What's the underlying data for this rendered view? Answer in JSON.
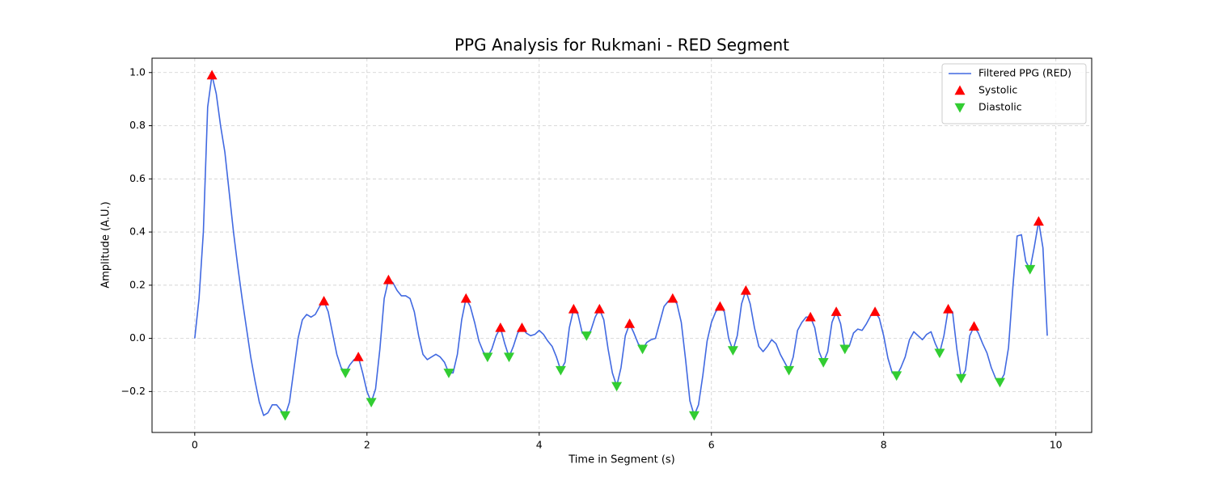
{
  "chart_data": {
    "type": "line",
    "title": "PPG Analysis for Rukmani - RED Segment",
    "xlabel": "Time in Segment (s)",
    "ylabel": "Amplitude (A.U.)",
    "xlim": [
      -0.496,
      10.416
    ],
    "ylim": [
      -0.354,
      1.054
    ],
    "xticks": [
      0,
      2,
      4,
      6,
      8,
      10
    ],
    "yticks": [
      {
        "value": -0.2,
        "label": "−0.2"
      },
      {
        "value": 0,
        "label": "0.0"
      },
      0.2,
      0.4,
      0.6,
      0.8,
      {
        "value": 1,
        "label": "1.0"
      }
    ],
    "grid": true,
    "legend": "upper right",
    "series": [
      {
        "name": "Filtered PPG (RED)",
        "color": "#4169e1",
        "marker": "line",
        "x": [
          0,
          0.05,
          0.1,
          0.15,
          0.2,
          0.25,
          0.3,
          0.35,
          0.4,
          0.45,
          0.5,
          0.55,
          0.6,
          0.65,
          0.7,
          0.75,
          0.8,
          0.85,
          0.9,
          0.95,
          1,
          1.05,
          1.1,
          1.15,
          1.2,
          1.25,
          1.3,
          1.35,
          1.4,
          1.45,
          1.5,
          1.55,
          1.6,
          1.65,
          1.7,
          1.75,
          1.8,
          1.85,
          1.9,
          1.95,
          2,
          2.05,
          2.1,
          2.15,
          2.2,
          2.25,
          2.3,
          2.35,
          2.4,
          2.45,
          2.5,
          2.55,
          2.6,
          2.65,
          2.7,
          2.75,
          2.8,
          2.85,
          2.9,
          2.95,
          3,
          3.05,
          3.1,
          3.15,
          3.2,
          3.25,
          3.3,
          3.35,
          3.4,
          3.45,
          3.5,
          3.55,
          3.6,
          3.65,
          3.7,
          3.75,
          3.8,
          3.85,
          3.9,
          3.95,
          4,
          4.05,
          4.1,
          4.15,
          4.2,
          4.25,
          4.3,
          4.35,
          4.4,
          4.45,
          4.5,
          4.55,
          4.6,
          4.65,
          4.7,
          4.75,
          4.8,
          4.85,
          4.9,
          4.95,
          5,
          5.05,
          5.1,
          5.15,
          5.2,
          5.25,
          5.3,
          5.35,
          5.4,
          5.45,
          5.5,
          5.55,
          5.6,
          5.65,
          5.7,
          5.75,
          5.8,
          5.85,
          5.9,
          5.95,
          6,
          6.05,
          6.1,
          6.15,
          6.2,
          6.25,
          6.3,
          6.35,
          6.4,
          6.45,
          6.5,
          6.55,
          6.6,
          6.65,
          6.7,
          6.75,
          6.8,
          6.85,
          6.9,
          6.95,
          7,
          7.05,
          7.1,
          7.15,
          7.2,
          7.25,
          7.3,
          7.35,
          7.4,
          7.45,
          7.5,
          7.55,
          7.6,
          7.65,
          7.7,
          7.75,
          7.8,
          7.85,
          7.9,
          7.95,
          8,
          8.05,
          8.1,
          8.15,
          8.2,
          8.25,
          8.3,
          8.35,
          8.4,
          8.45,
          8.5,
          8.55,
          8.6,
          8.65,
          8.7,
          8.75,
          8.8,
          8.85,
          8.9,
          8.95,
          9,
          9.05,
          9.1,
          9.15,
          9.2,
          9.25,
          9.3,
          9.35,
          9.4,
          9.45,
          9.5,
          9.55,
          9.6,
          9.65,
          9.7,
          9.75,
          9.8,
          9.85,
          9.9
        ],
        "values": [
          0,
          0.15,
          0.4,
          0.87,
          0.99,
          0.92,
          0.8,
          0.7,
          0.55,
          0.4,
          0.27,
          0.15,
          0.04,
          -0.07,
          -0.16,
          -0.24,
          -0.29,
          -0.28,
          -0.25,
          -0.25,
          -0.27,
          -0.29,
          -0.24,
          -0.12,
          0,
          0.07,
          0.09,
          0.08,
          0.09,
          0.12,
          0.14,
          0.1,
          0.02,
          -0.06,
          -0.11,
          -0.13,
          -0.1,
          -0.08,
          -0.07,
          -0.13,
          -0.2,
          -0.24,
          -0.19,
          -0.04,
          0.15,
          0.22,
          0.21,
          0.18,
          0.16,
          0.16,
          0.15,
          0.1,
          0.01,
          -0.06,
          -0.08,
          -0.07,
          -0.06,
          -0.07,
          -0.09,
          -0.13,
          -0.13,
          -0.06,
          0.07,
          0.15,
          0.12,
          0.06,
          -0.01,
          -0.05,
          -0.07,
          -0.04,
          0.01,
          0.04,
          -0.02,
          -0.07,
          -0.03,
          0.02,
          0.04,
          0.02,
          0.01,
          0.015,
          0.03,
          0.015,
          -0.01,
          -0.03,
          -0.07,
          -0.12,
          -0.09,
          0.04,
          0.11,
          0.09,
          0.02,
          0.01,
          0.03,
          0.08,
          0.11,
          0.07,
          -0.04,
          -0.13,
          -0.18,
          -0.11,
          0.01,
          0.055,
          0.02,
          -0.02,
          -0.04,
          -0.015,
          -0.005,
          0,
          0.06,
          0.12,
          0.14,
          0.15,
          0.13,
          0.06,
          -0.08,
          -0.235,
          -0.29,
          -0.25,
          -0.14,
          -0.01,
          0.06,
          0.1,
          0.12,
          0.1,
          0,
          -0.045,
          0.01,
          0.13,
          0.18,
          0.13,
          0.04,
          -0.03,
          -0.05,
          -0.03,
          -0.005,
          -0.02,
          -0.06,
          -0.09,
          -0.12,
          -0.07,
          0.03,
          0.06,
          0.08,
          0.08,
          0.04,
          -0.05,
          -0.09,
          -0.05,
          0.06,
          0.1,
          0.055,
          -0.04,
          -0.03,
          0.02,
          0.035,
          0.03,
          0.055,
          0.085,
          0.1,
          0.075,
          0.01,
          -0.075,
          -0.13,
          -0.14,
          -0.11,
          -0.07,
          -0.005,
          0.025,
          0.01,
          -0.005,
          0.015,
          0.025,
          -0.02,
          -0.055,
          0.01,
          0.11,
          0.1,
          -0.04,
          -0.15,
          -0.12,
          0.01,
          0.045,
          0.02,
          -0.02,
          -0.055,
          -0.11,
          -0.15,
          -0.165,
          -0.135,
          -0.035,
          0.19,
          0.385,
          0.39,
          0.29,
          0.26,
          0.345,
          0.44,
          0.34,
          0.01
        ]
      },
      {
        "name": "Systolic",
        "color": "#ff0000",
        "marker": "triangle-up",
        "x": [
          0.2,
          1.5,
          1.9,
          2.25,
          3.15,
          3.55,
          3.8,
          4.4,
          4.7,
          5.05,
          5.55,
          6.1,
          6.4,
          7.15,
          7.45,
          7.9,
          8.75,
          9.05,
          9.8
        ],
        "values": [
          0.99,
          0.14,
          -0.07,
          0.22,
          0.15,
          0.04,
          0.04,
          0.11,
          0.11,
          0.055,
          0.15,
          0.12,
          0.18,
          0.08,
          0.1,
          0.1,
          0.11,
          0.045,
          0.44
        ]
      },
      {
        "name": "Diastolic",
        "color": "#32cd32",
        "marker": "triangle-down",
        "x": [
          1.05,
          1.75,
          2.05,
          2.95,
          3.4,
          3.65,
          4.25,
          4.55,
          4.9,
          5.2,
          5.8,
          6.25,
          6.9,
          7.3,
          7.55,
          8.15,
          8.65,
          8.9,
          9.35,
          9.7
        ],
        "values": [
          -0.29,
          -0.13,
          -0.24,
          -0.13,
          -0.07,
          -0.07,
          -0.12,
          0.01,
          -0.18,
          -0.04,
          -0.29,
          -0.045,
          -0.12,
          -0.09,
          -0.04,
          -0.14,
          -0.055,
          -0.15,
          -0.165,
          0.26
        ]
      }
    ]
  }
}
